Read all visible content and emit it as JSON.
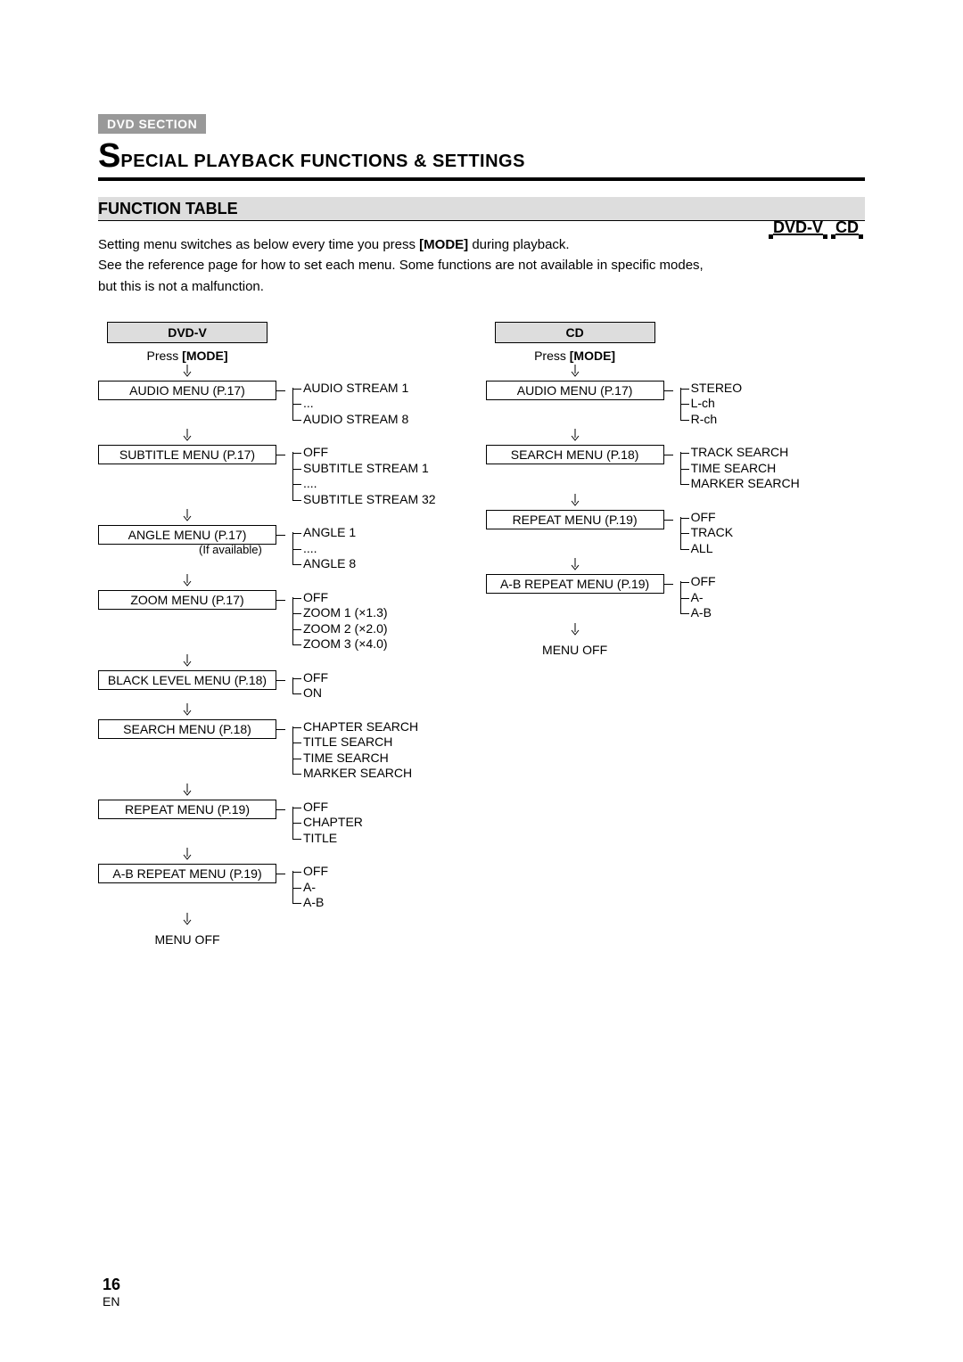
{
  "section_tag": "DVD SECTION",
  "title_first_letter": "S",
  "title_rest": "PECIAL PLAYBACK FUNCTIONS & SETTINGS",
  "subhead": "FUNCTION TABLE",
  "body_para_part1": "Setting menu switches as below every time you press ",
  "body_para_mode": "[MODE]",
  "body_para_part2": " during playback.",
  "body_para_line2": "See the reference page for how to set each menu. Some functions are not available in specific modes, but this is not a malfunction.",
  "icon_dvdv": "DVD-V",
  "icon_cd": "CD",
  "press_prefix": "Press ",
  "press_mode": "[MODE]",
  "menu_off": "MENU OFF",
  "dvd": {
    "header": "DVD-V",
    "items": [
      {
        "label": "AUDIO MENU (P.17)",
        "note": "",
        "opts": [
          "AUDIO STREAM 1",
          "...",
          "AUDIO STREAM 8"
        ]
      },
      {
        "label": "SUBTITLE MENU (P.17)",
        "note": "",
        "opts": [
          "OFF",
          "SUBTITLE STREAM 1",
          "....",
          "SUBTITLE STREAM 32"
        ]
      },
      {
        "label": "ANGLE MENU (P.17)",
        "note": "(If available)",
        "opts": [
          "ANGLE 1",
          "....",
          "ANGLE 8"
        ]
      },
      {
        "label": "ZOOM MENU (P.17)",
        "note": "",
        "opts": [
          "OFF",
          "ZOOM 1 (×1.3)",
          "ZOOM 2 (×2.0)",
          "ZOOM 3 (×4.0)"
        ]
      },
      {
        "label": "BLACK LEVEL MENU (P.18)",
        "note": "",
        "opts": [
          "OFF",
          "ON"
        ]
      },
      {
        "label": "SEARCH MENU (P.18)",
        "note": "",
        "opts": [
          "CHAPTER SEARCH",
          "TITLE SEARCH",
          "TIME SEARCH",
          "MARKER SEARCH"
        ]
      },
      {
        "label": "REPEAT MENU (P.19)",
        "note": "",
        "opts": [
          "OFF",
          "CHAPTER",
          "TITLE"
        ]
      },
      {
        "label": "A-B REPEAT MENU (P.19)",
        "note": "",
        "opts": [
          "OFF",
          "A-",
          "A-B"
        ]
      }
    ]
  },
  "cd": {
    "header": "CD",
    "items": [
      {
        "label": "AUDIO MENU (P.17)",
        "opts": [
          "STEREO",
          "L-ch",
          "R-ch"
        ]
      },
      {
        "label": "SEARCH MENU (P.18)",
        "opts": [
          "TRACK SEARCH",
          "TIME SEARCH",
          "MARKER SEARCH"
        ]
      },
      {
        "label": "REPEAT MENU (P.19)",
        "opts": [
          "OFF",
          "TRACK",
          "ALL"
        ]
      },
      {
        "label": "A-B REPEAT MENU (P.19)",
        "opts": [
          "OFF",
          "A-",
          "A-B"
        ]
      }
    ]
  },
  "page_number": "16",
  "page_lang": "EN"
}
